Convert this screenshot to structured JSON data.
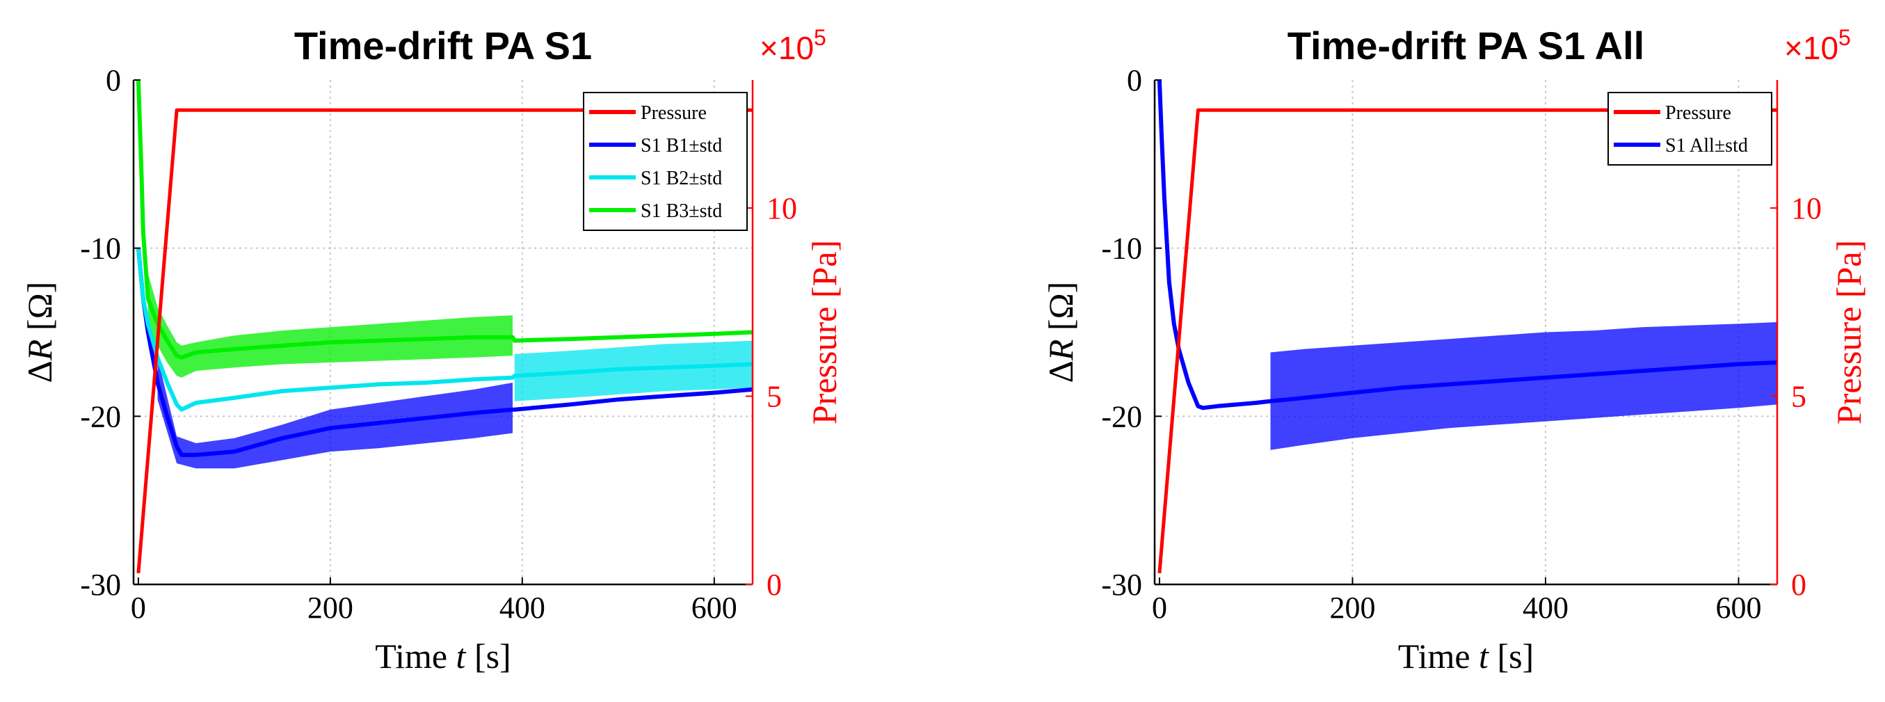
{
  "chart_data": [
    {
      "type": "line",
      "title": "Time-drift PA S1",
      "xlabel_prefix": "Time ",
      "xlabel_var": "t",
      "xlabel_suffix": " [s]",
      "ylabel_delta": "Δ",
      "ylabel_var": "R",
      "ylabel_suffix": " [Ω]",
      "y2label": "Pressure [Pa]",
      "y2_multiplier_base": "×10",
      "y2_multiplier_exp": "5",
      "xlim": [
        -5,
        640
      ],
      "ylim": [
        -30,
        0
      ],
      "y2lim": [
        0,
        13.4
      ],
      "xticks": [
        0,
        200,
        400,
        600
      ],
      "xtick_labels": [
        "0",
        "200",
        "400",
        "600"
      ],
      "yticks": [
        0,
        -10,
        -20,
        -30
      ],
      "ytick_labels": [
        "0",
        "-10",
        "-20",
        "-30"
      ],
      "y2ticks": [
        0,
        5,
        10
      ],
      "y2tick_labels": [
        "0",
        "5",
        "10"
      ],
      "grid": true,
      "legend_position": "top-right",
      "pressure": {
        "name": "Pressure",
        "color": "#ff0000",
        "x": [
          0,
          40,
          640
        ],
        "y": [
          0.3,
          12.6,
          12.6
        ]
      },
      "series": [
        {
          "name": "S1 B1±std",
          "color": "#0000ff",
          "x": [
            0,
            5,
            10,
            20,
            30,
            40,
            45,
            60,
            100,
            150,
            200,
            250,
            300,
            350,
            390,
            392,
            450,
            500,
            550,
            600,
            640
          ],
          "y": [
            -10,
            -13,
            -15,
            -18,
            -20,
            -21.8,
            -22.3,
            -22.3,
            -22.1,
            -21.3,
            -20.7,
            -20.4,
            -20.1,
            -19.8,
            -19.6,
            -19.6,
            -19.3,
            -19.0,
            -18.8,
            -18.6,
            -18.4
          ],
          "band_x": [
            20,
            40,
            60,
            100,
            150,
            200,
            250,
            300,
            350,
            390
          ],
          "band_lo": [
            -19,
            -22.8,
            -23.1,
            -23.1,
            -22.6,
            -22.1,
            -21.9,
            -21.6,
            -21.3,
            -21.0
          ],
          "band_hi": [
            -16.5,
            -21.2,
            -21.6,
            -21.3,
            -20.5,
            -19.6,
            -19.2,
            -18.8,
            -18.4,
            -18.0
          ]
        },
        {
          "name": "S1 B2±std",
          "color": "#00e5ee",
          "x": [
            0,
            5,
            10,
            20,
            30,
            40,
            45,
            60,
            100,
            150,
            200,
            250,
            300,
            350,
            390,
            392,
            450,
            500,
            550,
            600,
            640
          ],
          "y": [
            -10,
            -13,
            -14.5,
            -16.5,
            -18,
            -19.3,
            -19.6,
            -19.2,
            -18.9,
            -18.5,
            -18.3,
            -18.1,
            -18.0,
            -17.8,
            -17.7,
            -17.6,
            -17.4,
            -17.2,
            -17.1,
            -17.0,
            -16.9
          ],
          "band_x": [
            392,
            450,
            500,
            550,
            600,
            640
          ],
          "band_lo": [
            -19.1,
            -18.9,
            -18.7,
            -18.5,
            -18.4,
            -18.3
          ],
          "band_hi": [
            -16.3,
            -16.1,
            -15.9,
            -15.7,
            -15.6,
            -15.5
          ]
        },
        {
          "name": "S1 B3±std",
          "color": "#00ee00",
          "x": [
            0,
            3,
            5,
            10,
            20,
            30,
            40,
            45,
            60,
            100,
            150,
            200,
            250,
            300,
            350,
            390,
            392,
            450,
            500,
            550,
            600,
            640
          ],
          "y": [
            0,
            -5,
            -9,
            -13,
            -14.5,
            -15.5,
            -16.4,
            -16.5,
            -16.2,
            -16.0,
            -15.8,
            -15.6,
            -15.5,
            -15.4,
            -15.3,
            -15.3,
            -15.5,
            -15.4,
            -15.3,
            -15.2,
            -15.1,
            -15.0
          ],
          "band_x": [
            10,
            20,
            30,
            40,
            45,
            60,
            100,
            150,
            200,
            250,
            300,
            350,
            390
          ],
          "band_lo": [
            -14.8,
            -15.8,
            -16.8,
            -17.6,
            -17.7,
            -17.3,
            -17.1,
            -16.9,
            -16.8,
            -16.7,
            -16.6,
            -16.5,
            -16.4
          ],
          "band_hi": [
            -11.5,
            -13.5,
            -14.6,
            -15.6,
            -15.8,
            -15.6,
            -15.2,
            -14.9,
            -14.7,
            -14.5,
            -14.3,
            -14.1,
            -14.0
          ]
        }
      ]
    },
    {
      "type": "line",
      "title": "Time-drift PA S1 All",
      "xlabel_prefix": "Time ",
      "xlabel_var": "t",
      "xlabel_suffix": " [s]",
      "ylabel_delta": "Δ",
      "ylabel_var": "R",
      "ylabel_suffix": " [Ω]",
      "y2label": "Pressure [Pa]",
      "y2_multiplier_base": "×10",
      "y2_multiplier_exp": "5",
      "xlim": [
        -5,
        640
      ],
      "ylim": [
        -30,
        0
      ],
      "y2lim": [
        0,
        13.4
      ],
      "xticks": [
        0,
        200,
        400,
        600
      ],
      "xtick_labels": [
        "0",
        "200",
        "400",
        "600"
      ],
      "yticks": [
        0,
        -10,
        -20,
        -30
      ],
      "ytick_labels": [
        "0",
        "-10",
        "-20",
        "-30"
      ],
      "y2ticks": [
        0,
        5,
        10
      ],
      "y2tick_labels": [
        "0",
        "5",
        "10"
      ],
      "grid": true,
      "legend_position": "top-right",
      "pressure": {
        "name": "Pressure",
        "color": "#ff0000",
        "x": [
          0,
          40,
          640
        ],
        "y": [
          0.3,
          12.6,
          12.6
        ]
      },
      "series": [
        {
          "name": "S1 All±std",
          "color": "#0000ff",
          "x": [
            0,
            2,
            5,
            10,
            15,
            20,
            30,
            40,
            45,
            60,
            100,
            115,
            150,
            200,
            250,
            300,
            350,
            400,
            450,
            500,
            550,
            600,
            640
          ],
          "y": [
            0,
            -3,
            -7,
            -12,
            -14.5,
            -16.0,
            -18.0,
            -19.4,
            -19.5,
            -19.4,
            -19.2,
            -19.1,
            -18.9,
            -18.6,
            -18.3,
            -18.1,
            -17.9,
            -17.7,
            -17.5,
            -17.3,
            -17.1,
            -16.9,
            -16.8
          ],
          "band_x": [
            115,
            150,
            200,
            250,
            300,
            350,
            400,
            450,
            500,
            550,
            600,
            640
          ],
          "band_lo": [
            -22.0,
            -21.7,
            -21.3,
            -21.0,
            -20.7,
            -20.5,
            -20.3,
            -20.1,
            -19.9,
            -19.7,
            -19.5,
            -19.3
          ],
          "band_hi": [
            -16.2,
            -16.0,
            -15.8,
            -15.6,
            -15.4,
            -15.2,
            -15.0,
            -14.9,
            -14.7,
            -14.6,
            -14.5,
            -14.4
          ]
        }
      ]
    }
  ]
}
